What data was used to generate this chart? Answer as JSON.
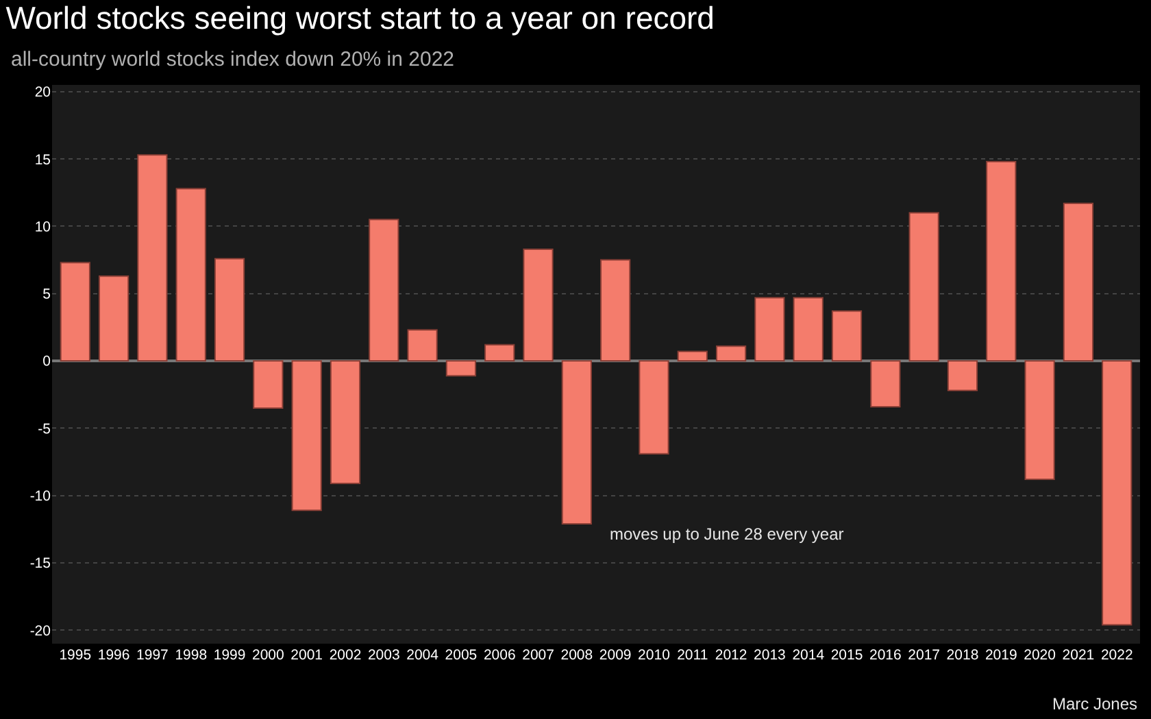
{
  "chart_data": {
    "type": "bar",
    "title": "World stocks seeing worst start to a year on record",
    "subtitle": "all-country world stocks index down 20% in 2022",
    "categories": [
      "1995",
      "1996",
      "1997",
      "1998",
      "1999",
      "2000",
      "2001",
      "2002",
      "2003",
      "2004",
      "2005",
      "2006",
      "2007",
      "2008",
      "2009",
      "2010",
      "2011",
      "2012",
      "2013",
      "2014",
      "2015",
      "2016",
      "2017",
      "2018",
      "2019",
      "2020",
      "2021",
      "2022"
    ],
    "values": [
      7.3,
      6.3,
      15.3,
      12.8,
      7.6,
      -3.5,
      -11.1,
      -9.1,
      10.5,
      2.3,
      -1.1,
      1.2,
      8.3,
      -12.1,
      7.5,
      -6.9,
      0.7,
      1.1,
      4.7,
      4.7,
      3.7,
      -3.4,
      11.0,
      -2.2,
      14.8,
      -8.8,
      11.7,
      -19.6
    ],
    "color": "#f47c6c",
    "ylim": [
      -21,
      20.5
    ],
    "yticks": [
      -20,
      -15,
      -10,
      -5,
      0,
      5,
      10,
      15,
      20
    ],
    "grid": "y",
    "legend": false,
    "annotations": [
      "moves up to June 28 every year",
      "Marc Jones"
    ]
  }
}
